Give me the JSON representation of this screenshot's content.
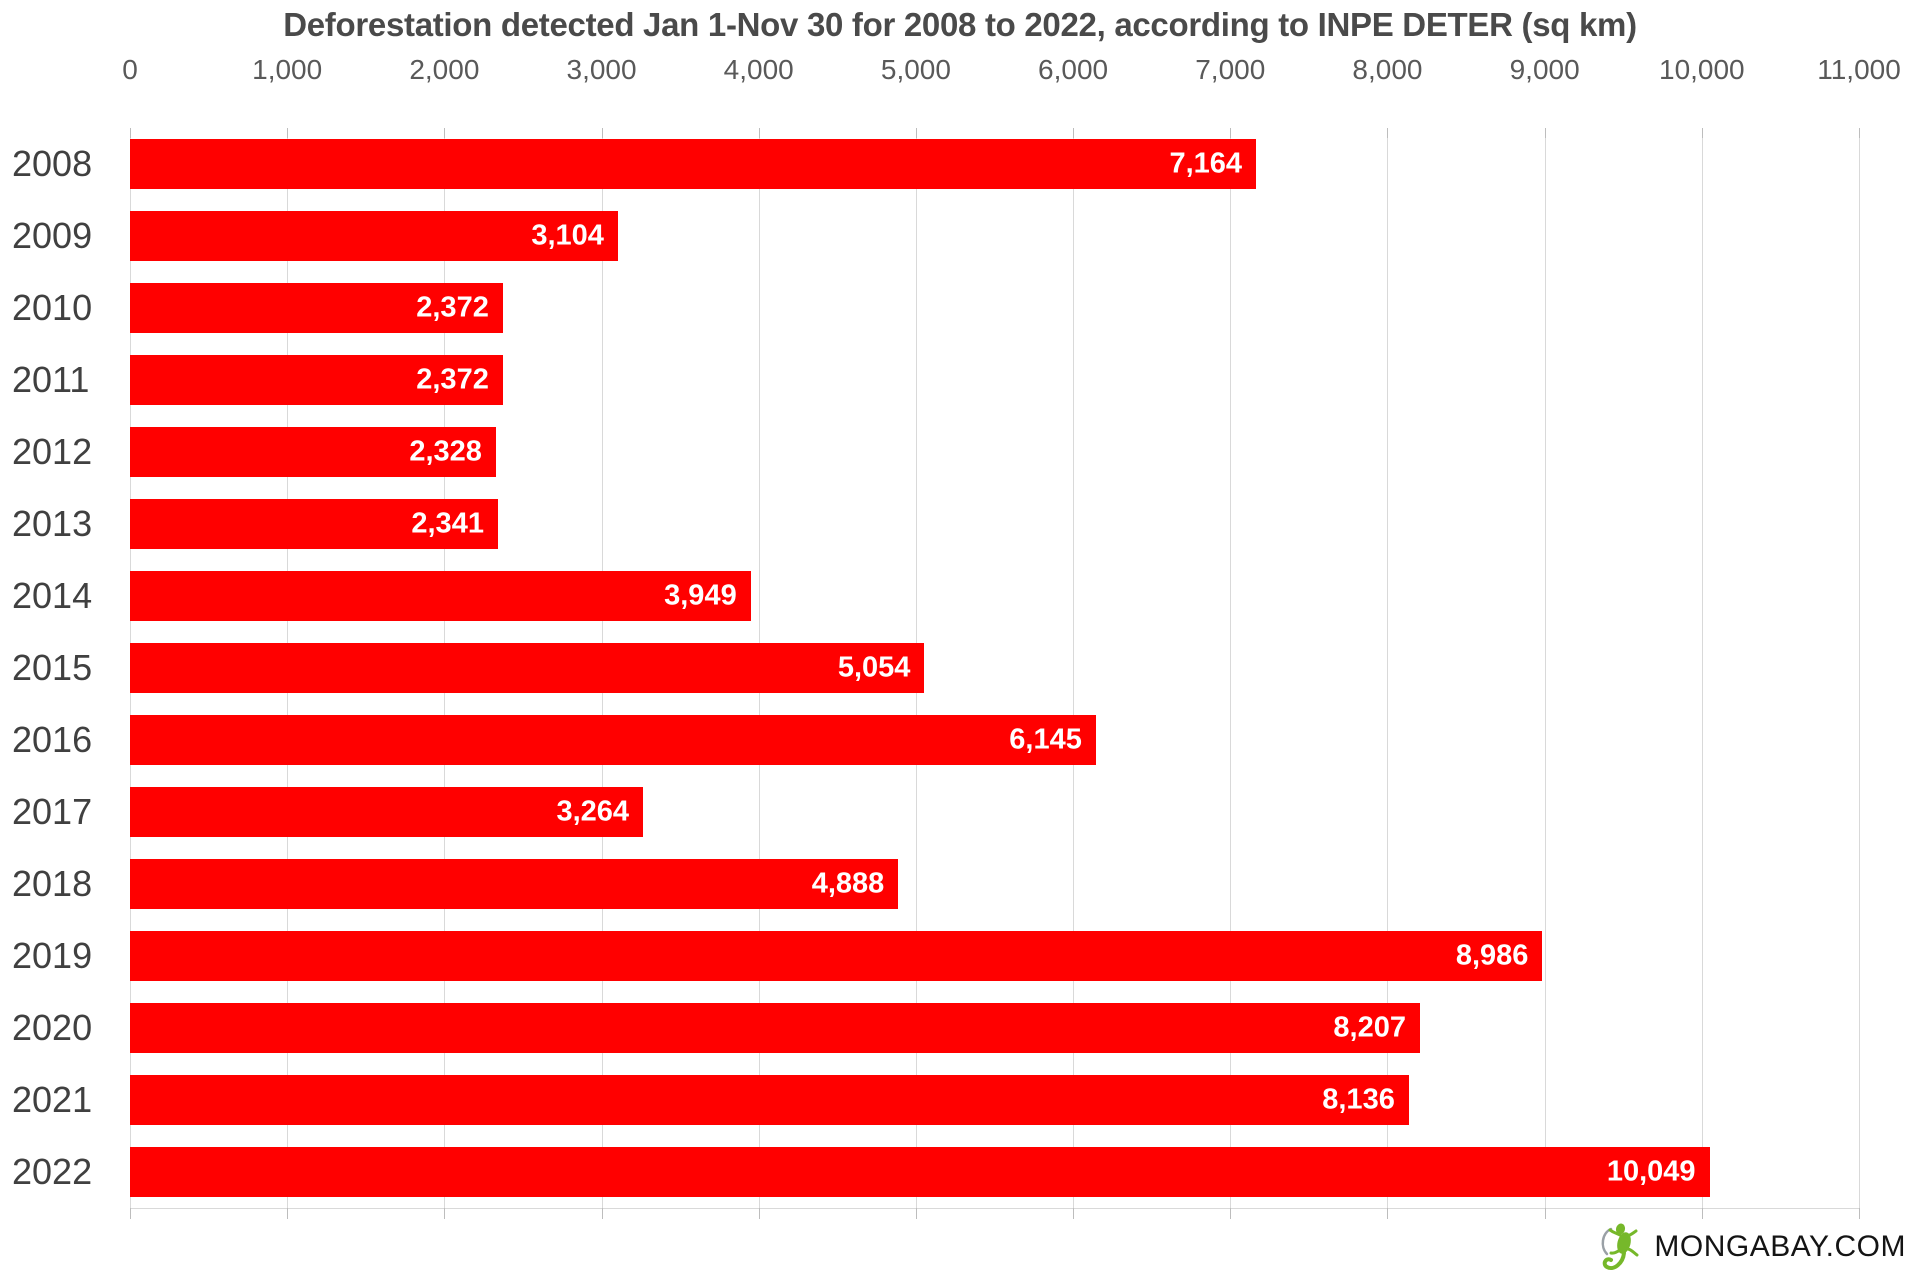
{
  "title": "Deforestation detected Jan 1-Nov 30 for 2008 to 2022, according to INPE DETER (sq km)",
  "chart_data": {
    "type": "bar",
    "orientation": "horizontal",
    "title": "Deforestation detected Jan 1-Nov 30 for 2008 to 2022, according to INPE DETER (sq km)",
    "categories": [
      "2008",
      "2009",
      "2010",
      "2011",
      "2012",
      "2013",
      "2014",
      "2015",
      "2016",
      "2017",
      "2018",
      "2019",
      "2020",
      "2021",
      "2022"
    ],
    "values": [
      7164,
      3104,
      2372,
      2372,
      2328,
      2341,
      3949,
      5054,
      6145,
      3264,
      4888,
      8986,
      8207,
      8136,
      10049
    ],
    "value_labels": [
      "7,164",
      "3,104",
      "2,372",
      "2,372",
      "2,328",
      "2,341",
      "3,949",
      "5,054",
      "6,145",
      "3,264",
      "4,888",
      "8,986",
      "8,207",
      "8,136",
      "10,049"
    ],
    "xlabel": "",
    "ylabel": "",
    "xlim": [
      0,
      11000
    ],
    "x_tick_interval": 1000,
    "x_ticks": [
      "0",
      "1,000",
      "2,000",
      "3,000",
      "4,000",
      "5,000",
      "6,000",
      "7,000",
      "8,000",
      "9,000",
      "10,000",
      "11,000"
    ],
    "grid": true,
    "legend": false,
    "bar_color": "#ff0000",
    "bar_label_color": "#ffffff",
    "axis_text_color": "#595959",
    "category_text_color": "#404040",
    "gridline_color": "#d9d9d9"
  },
  "footer": {
    "brand": "MONGABAY.COM",
    "logo": "gecko-icon",
    "logo_color": "#76b82a"
  }
}
